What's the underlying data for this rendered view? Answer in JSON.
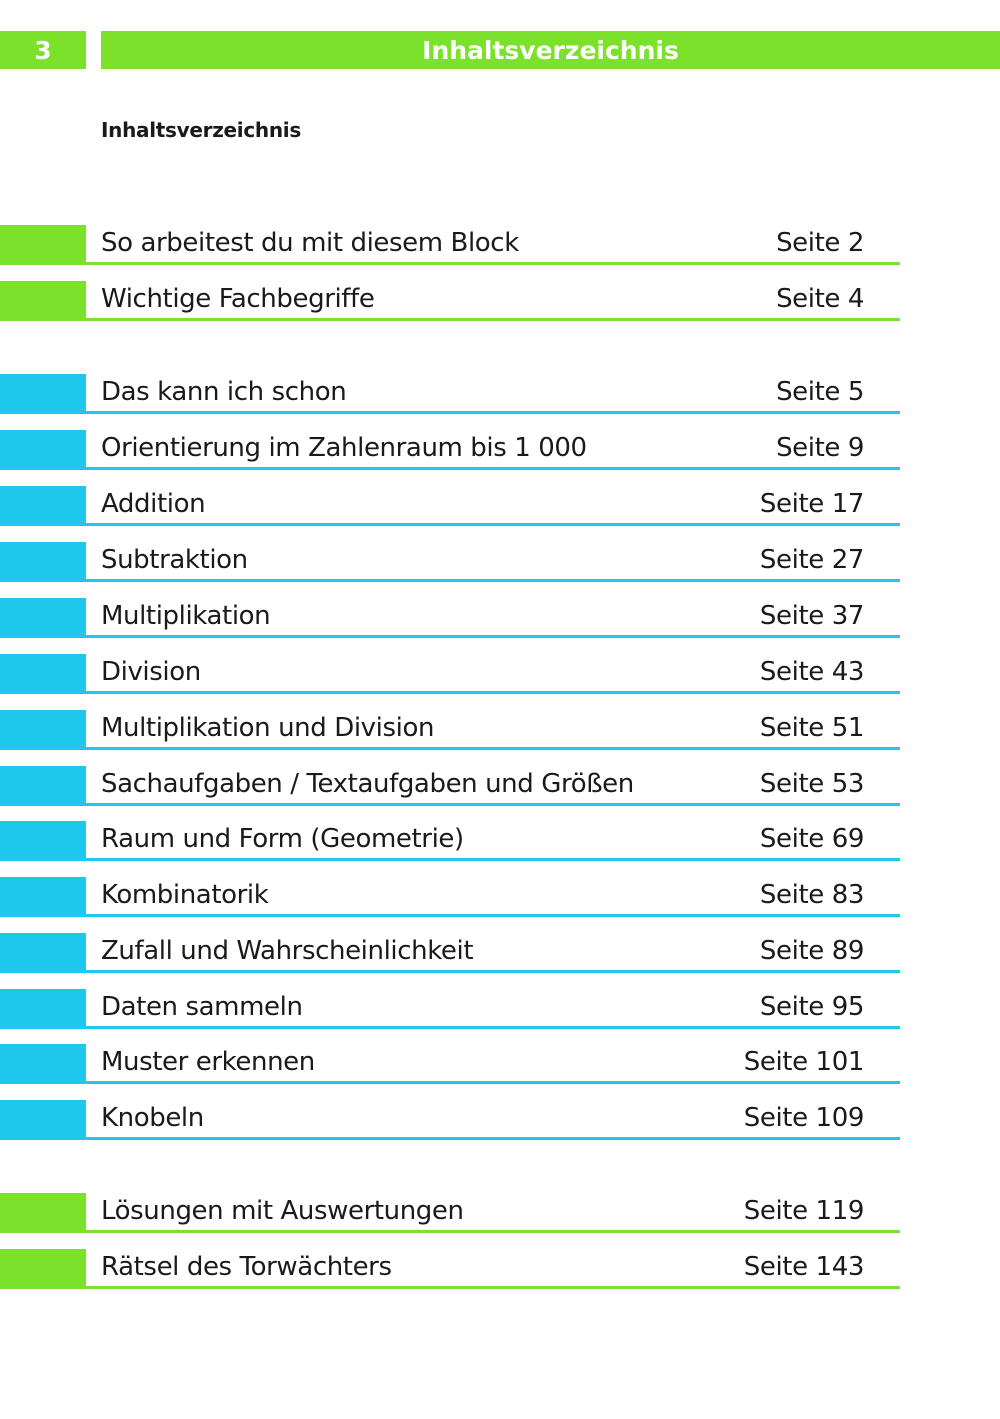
{
  "header": {
    "page_number": "3",
    "title": "Inhaltsverzeichnis"
  },
  "subheading": "Inhaltsverzeichnis",
  "colors": {
    "green": "#7be12a",
    "cyan": "#1ec8ec"
  },
  "toc": [
    {
      "title": "So arbeitest du mit diesem Block",
      "page": "Seite 2",
      "color": "green"
    },
    {
      "title": "Wichtige Fachbegriffe",
      "page": "Seite 4",
      "color": "green"
    },
    {
      "title": "Das kann ich schon",
      "page": "Seite 5",
      "color": "cyan"
    },
    {
      "title": "Orientierung im Zahlenraum bis 1 000",
      "page": "Seite 9",
      "color": "cyan"
    },
    {
      "title": "Addition",
      "page": "Seite 17",
      "color": "cyan"
    },
    {
      "title": "Subtraktion",
      "page": "Seite 27",
      "color": "cyan"
    },
    {
      "title": "Multiplikation",
      "page": "Seite 37",
      "color": "cyan"
    },
    {
      "title": "Division",
      "page": "Seite 43",
      "color": "cyan"
    },
    {
      "title": "Multiplikation und Division",
      "page": "Seite 51",
      "color": "cyan"
    },
    {
      "title": "Sachaufgaben / Textaufgaben und Größen",
      "page": "Seite 53",
      "color": "cyan"
    },
    {
      "title": "Raum und Form (Geometrie)",
      "page": "Seite 69",
      "color": "cyan"
    },
    {
      "title": "Kombinatorik",
      "page": "Seite 83",
      "color": "cyan"
    },
    {
      "title": "Zufall und Wahrscheinlichkeit",
      "page": "Seite 89",
      "color": "cyan"
    },
    {
      "title": "Daten sammeln",
      "page": "Seite 95",
      "color": "cyan"
    },
    {
      "title": "Muster erkennen",
      "page": "Seite 101",
      "color": "cyan"
    },
    {
      "title": "Knobeln",
      "page": "Seite 109",
      "color": "cyan"
    },
    {
      "title": "Lösungen mit Auswertungen",
      "page": "Seite 119",
      "color": "green"
    },
    {
      "title": "Rätsel des Torwächters",
      "page": "Seite 143",
      "color": "green"
    }
  ]
}
